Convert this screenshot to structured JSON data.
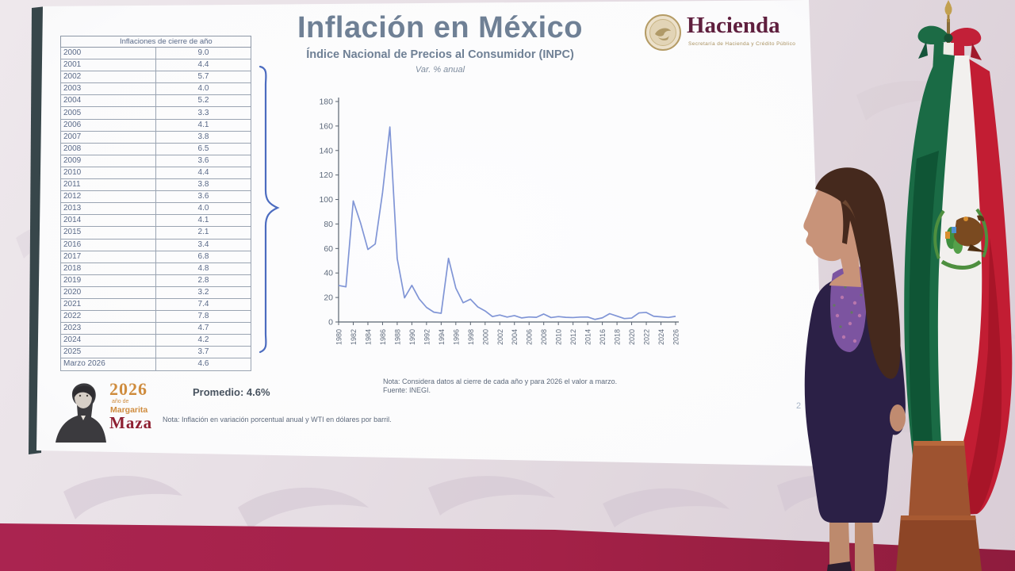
{
  "slide": {
    "title": "Inflación en México",
    "subtitle": "Índice Nacional de Precios al Consumidor (INPC)",
    "variation_label": "Var. % anual",
    "promedio": "Promedio: 4.6%",
    "note_right_line1": "Nota: Considera datos al cierre de cada año y para 2026 el valor a marzo.",
    "note_right_line2": "Fuente: INEGI.",
    "note_bottom": "Nota: Inflación en variación porcentual anual y WTI en dólares por barril.",
    "page_number": "2",
    "table": {
      "header": "Inflaciones de cierre de año",
      "rows": [
        [
          "2000",
          "9.0"
        ],
        [
          "2001",
          "4.4"
        ],
        [
          "2002",
          "5.7"
        ],
        [
          "2003",
          "4.0"
        ],
        [
          "2004",
          "5.2"
        ],
        [
          "2005",
          "3.3"
        ],
        [
          "2006",
          "4.1"
        ],
        [
          "2007",
          "3.8"
        ],
        [
          "2008",
          "6.5"
        ],
        [
          "2009",
          "3.6"
        ],
        [
          "2010",
          "4.4"
        ],
        [
          "2011",
          "3.8"
        ],
        [
          "2012",
          "3.6"
        ],
        [
          "2013",
          "4.0"
        ],
        [
          "2014",
          "4.1"
        ],
        [
          "2015",
          "2.1"
        ],
        [
          "2016",
          "3.4"
        ],
        [
          "2017",
          "6.8"
        ],
        [
          "2018",
          "4.8"
        ],
        [
          "2019",
          "2.8"
        ],
        [
          "2020",
          "3.2"
        ],
        [
          "2021",
          "7.4"
        ],
        [
          "2022",
          "7.8"
        ],
        [
          "2023",
          "4.7"
        ],
        [
          "2024",
          "4.2"
        ],
        [
          "2025",
          "3.7"
        ],
        [
          "Marzo 2026",
          "4.6"
        ]
      ]
    },
    "hacienda": {
      "wordmark": "Hacienda",
      "caption": "Secretaría de Hacienda y Crédito Público"
    },
    "maza": {
      "year": "2026",
      "line1": "año de",
      "line2": "Margarita",
      "line3": "Maza"
    }
  },
  "chart_data": {
    "type": "line",
    "title": "Índice Nacional de Precios al Consumidor (INPC)",
    "subtitle": "Var. % anual",
    "x": [
      1980,
      1981,
      1982,
      1983,
      1984,
      1985,
      1986,
      1987,
      1988,
      1989,
      1990,
      1991,
      1992,
      1993,
      1994,
      1995,
      1996,
      1997,
      1998,
      1999,
      2000,
      2001,
      2002,
      2003,
      2004,
      2005,
      2006,
      2007,
      2008,
      2009,
      2010,
      2011,
      2012,
      2013,
      2014,
      2015,
      2016,
      2017,
      2018,
      2019,
      2020,
      2021,
      2022,
      2023,
      2024,
      2025,
      2026
    ],
    "values": [
      29.8,
      28.7,
      98.8,
      80.8,
      59.2,
      63.7,
      105.7,
      159.2,
      51.7,
      19.7,
      29.9,
      18.8,
      11.9,
      8.0,
      7.1,
      52.0,
      27.7,
      15.7,
      18.6,
      12.3,
      9.0,
      4.4,
      5.7,
      4.0,
      5.2,
      3.3,
      4.1,
      3.8,
      6.5,
      3.6,
      4.4,
      3.8,
      3.6,
      4.0,
      4.1,
      2.1,
      3.4,
      6.8,
      4.8,
      2.8,
      3.2,
      7.4,
      7.8,
      4.7,
      4.2,
      3.7,
      4.6
    ],
    "xlabel": "",
    "ylabel": "",
    "ylim": [
      0,
      180
    ],
    "y_tick_step": 20,
    "x_tick_step": 2,
    "grid": false,
    "legend": false,
    "line_color": "#8095d6"
  },
  "icons": {
    "hacienda-seal-icon": "circular-gold-eagle-seal",
    "maza-portrait-icon": "margarita-maza-portrait",
    "flag-coat-of-arms-icon": "mexican-eagle-emblem",
    "flag-finial-icon": "gold-spear-finial"
  },
  "colors": {
    "slide_text": "#6f8095",
    "table_text": "#5a6a88",
    "brace_blue": "#4c6cc0",
    "chart_line": "#8095d6",
    "hacienda_maroon": "#5f1f3e",
    "hacienda_gold": "#a8905e",
    "maza_orange": "#cf8c3e",
    "maza_red": "#8e1f31",
    "stage_crimson": "#a32147",
    "suit_purple": "#2b2046",
    "flag_green": "#1a6b45",
    "flag_red": "#c21d33"
  }
}
